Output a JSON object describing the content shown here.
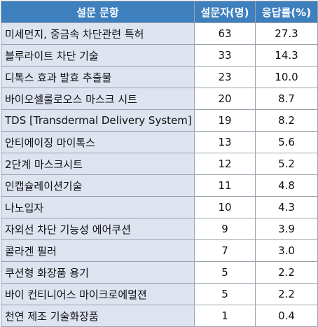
{
  "headers": [
    "설문 문항",
    "설문자(명)",
    "응답률(%)"
  ],
  "rows": [
    {
      "item": "미세먼지, 중금속 차단관련 특허",
      "respondents": "63",
      "rate": "27.3"
    },
    {
      "item": "블루라이트 차단 기술",
      "respondents": "33",
      "rate": "14.3"
    },
    {
      "item": "디톡스 효과 발효 추출물",
      "respondents": "23",
      "rate": "10.0"
    },
    {
      "item": "바이오셀룰로오스 마스크 시트",
      "respondents": "20",
      "rate": "8.7"
    },
    {
      "item": "TDS [Transdermal Delivery System]",
      "respondents": "19",
      "rate": "8.2"
    },
    {
      "item": "안티에이징 마이톡스",
      "respondents": "13",
      "rate": "5.6"
    },
    {
      "item": "2단계 마스크시트",
      "respondents": "12",
      "rate": "5.2"
    },
    {
      "item": "인캡슐레이션기술",
      "respondents": "11",
      "rate": "4.8"
    },
    {
      "item": "나노입자",
      "respondents": "10",
      "rate": "4.3"
    },
    {
      "item": "자외선 차단 기능성 에어쿠션",
      "respondents": "9",
      "rate": "3.9"
    },
    {
      "item": "콜라겐 필러",
      "respondents": "7",
      "rate": "3.0"
    },
    {
      "item": "쿠션형 화장품 용기",
      "respondents": "5",
      "rate": "2.2"
    },
    {
      "item": "바이 컨티니어스 마이크로에멀젼",
      "respondents": "5",
      "rate": "2.2"
    },
    {
      "item": "천연 제조 기술화장품",
      "respondents": "1",
      "rate": "0.4"
    }
  ],
  "colors": {
    "header_bg": "#3e7fbe",
    "header_text": "#ffffff",
    "item_bg": "#dde3ef",
    "border": "#9aa3ad"
  }
}
